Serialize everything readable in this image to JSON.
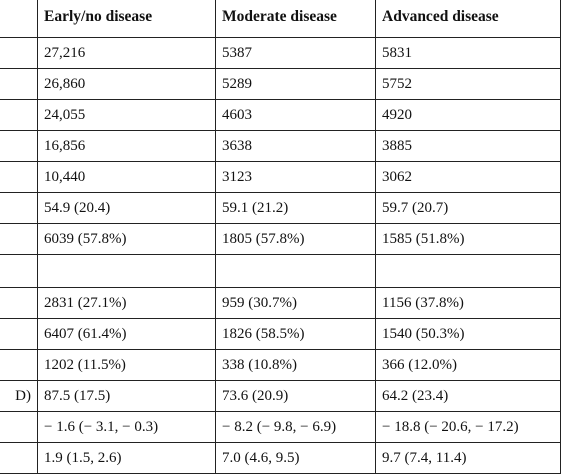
{
  "header": {
    "col0": "",
    "col1": "Early/no disease",
    "col2": "Moderate disease",
    "col3": "Advanced disease"
  },
  "rows": [
    {
      "label": "",
      "c1": "27,216",
      "c2": "5387",
      "c3": "5831"
    },
    {
      "label": "",
      "c1": "26,860",
      "c2": "5289",
      "c3": "5752"
    },
    {
      "label": "",
      "c1": "24,055",
      "c2": "4603",
      "c3": "4920"
    },
    {
      "label": "",
      "c1": "16,856",
      "c2": "3638",
      "c3": "3885"
    },
    {
      "label": "",
      "c1": "10,440",
      "c2": "3123",
      "c3": "3062"
    },
    {
      "label": "",
      "c1": "54.9 (20.4)",
      "c2": "59.1 (21.2)",
      "c3": "59.7 (20.7)"
    },
    {
      "label": "",
      "c1": "6039 (57.8%)",
      "c2": "1805 (57.8%)",
      "c3": "1585 (51.8%)"
    },
    {
      "label": "",
      "c1": "",
      "c2": "",
      "c3": ""
    },
    {
      "label": "",
      "c1": "2831 (27.1%)",
      "c2": "959 (30.7%)",
      "c3": "1156 (37.8%)"
    },
    {
      "label": "",
      "c1": "6407 (61.4%)",
      "c2": "1826 (58.5%)",
      "c3": "1540 (50.3%)"
    },
    {
      "label": "",
      "c1": "1202 (11.5%)",
      "c2": "338 (10.8%)",
      "c3": "366 (12.0%)"
    },
    {
      "label": "D)",
      "c1": "87.5 (17.5)",
      "c2": "73.6 (20.9)",
      "c3": "64.2 (23.4)"
    },
    {
      "label": "",
      "c1": "− 1.6 (− 3.1, − 0.3)",
      "c2": "− 8.2 (− 9.8, − 6.9)",
      "c3": "− 18.8 (− 20.6, − 17.2)"
    },
    {
      "label": "",
      "c1": "1.9 (1.5, 2.6)",
      "c2": "7.0 (4.6, 9.5)",
      "c3": "9.7 (7.4, 11.4)"
    }
  ]
}
